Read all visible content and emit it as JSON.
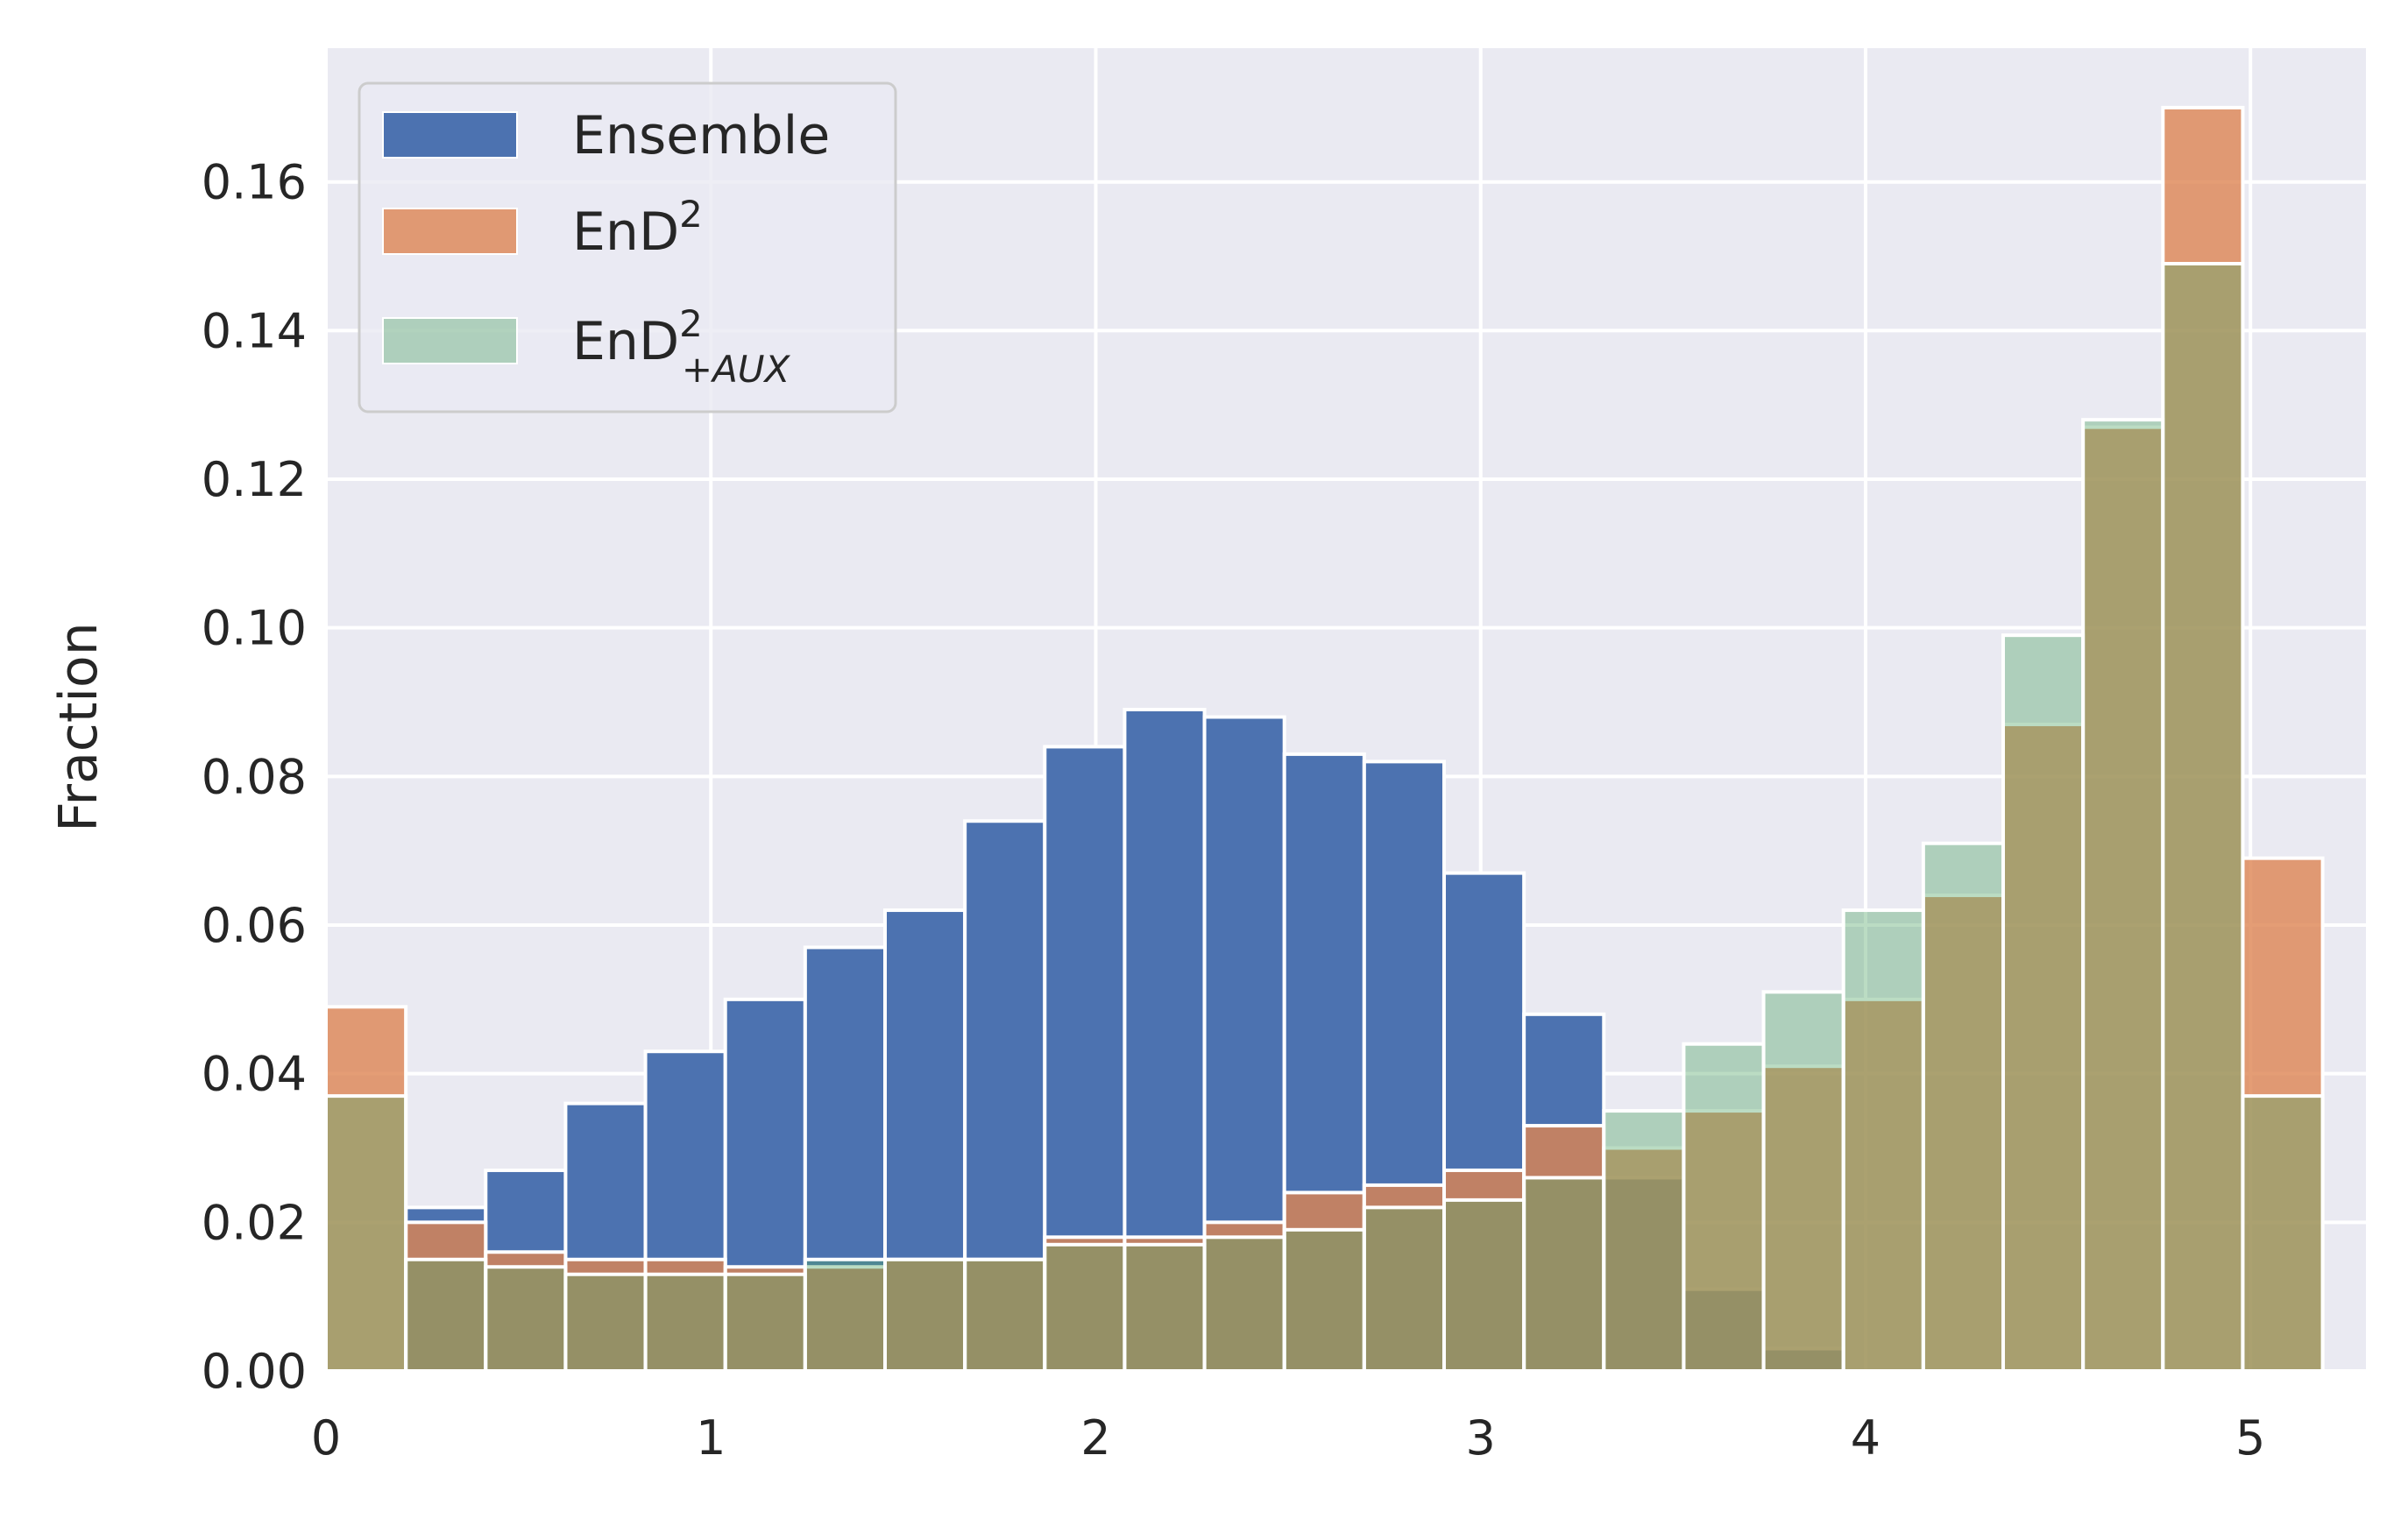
{
  "chart_data": {
    "type": "bar",
    "subtype": "overlaid-histogram",
    "ylabel": "Fraction",
    "xlabel": "",
    "xlim": [
      0,
      5.3
    ],
    "ylim": [
      0,
      0.178
    ],
    "xticks": [
      0,
      1,
      2,
      3,
      4,
      5
    ],
    "xtick_labels": [
      "0",
      "1",
      "2",
      "3",
      "4",
      "5"
    ],
    "yticks": [
      0.0,
      0.02,
      0.04,
      0.06,
      0.08,
      0.1,
      0.12,
      0.14,
      0.16
    ],
    "ytick_labels": [
      "0.00",
      "0.02",
      "0.04",
      "0.06",
      "0.08",
      "0.10",
      "0.12",
      "0.14",
      "0.16"
    ],
    "grid": true,
    "legend_position": "top-left",
    "bin_width": 0.2075,
    "bin_edges_start": 0,
    "series": [
      {
        "name": "Ensemble",
        "legend_text": "Ensemble",
        "color": "#4c72b0",
        "opacity": 1.0,
        "values": [
          0.0,
          0.022,
          0.027,
          0.036,
          0.043,
          0.05,
          0.057,
          0.062,
          0.074,
          0.084,
          0.089,
          0.088,
          0.083,
          0.082,
          0.067,
          0.048,
          0.026,
          0.011,
          0.003,
          0,
          0,
          0,
          0,
          0,
          0
        ]
      },
      {
        "name": "EnD2",
        "legend_text": "EnD",
        "legend_sup": "2",
        "color": "#dd8452",
        "opacity": 0.8,
        "values": [
          0.049,
          0.02,
          0.016,
          0.015,
          0.015,
          0.014,
          0.014,
          0.015,
          0.015,
          0.018,
          0.018,
          0.02,
          0.024,
          0.025,
          0.027,
          0.033,
          0.03,
          0.035,
          0.041,
          0.05,
          0.064,
          0.087,
          0.127,
          0.17,
          0.069
        ]
      },
      {
        "name": "EnD2+AUX",
        "legend_text": "EnD",
        "legend_sup": "2",
        "legend_sub": "+AUX",
        "color": "#55a868",
        "opacity": 0.4,
        "values": [
          0.037,
          0.015,
          0.014,
          0.013,
          0.013,
          0.013,
          0.015,
          0.015,
          0.015,
          0.017,
          0.017,
          0.018,
          0.019,
          0.022,
          0.023,
          0.026,
          0.035,
          0.044,
          0.051,
          0.062,
          0.071,
          0.099,
          0.128,
          0.149,
          0.037
        ]
      }
    ]
  }
}
